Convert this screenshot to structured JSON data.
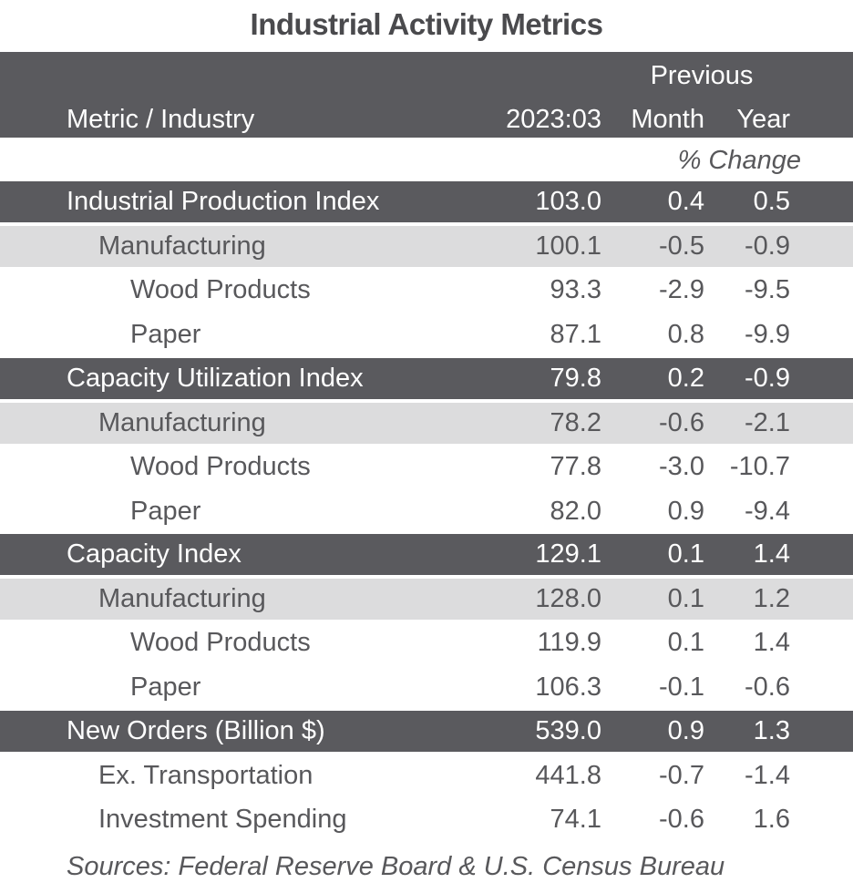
{
  "title": "Industrial Activity Metrics",
  "header": {
    "metric_label": "Metric / Industry",
    "period_label": "2023:03",
    "previous_label": "Previous",
    "month_label": "Month",
    "year_label": "Year",
    "pct_change_label": "% Change"
  },
  "colors": {
    "dark_band": "#5a5a5e",
    "light_band": "#dcdcdd",
    "text": "#58585b"
  },
  "sections": [
    {
      "rows": [
        {
          "label": "Industrial Production Index",
          "level": 0,
          "value": "103.0",
          "month": "0.4",
          "year": "0.5"
        },
        {
          "label": "Manufacturing",
          "level": 1,
          "value": "100.1",
          "month": "-0.5",
          "year": "-0.9"
        },
        {
          "label": "Wood Products",
          "level": 2,
          "value": "93.3",
          "month": "-2.9",
          "year": "-9.5"
        },
        {
          "label": "Paper",
          "level": 2,
          "value": "87.1",
          "month": "0.8",
          "year": "-9.9"
        }
      ]
    },
    {
      "rows": [
        {
          "label": "Capacity Utilization Index",
          "level": 0,
          "value": "79.8",
          "month": "0.2",
          "year": "-0.9"
        },
        {
          "label": "Manufacturing",
          "level": 1,
          "value": "78.2",
          "month": "-0.6",
          "year": "-2.1"
        },
        {
          "label": "Wood Products",
          "level": 2,
          "value": "77.8",
          "month": "-3.0",
          "year": "-10.7"
        },
        {
          "label": "Paper",
          "level": 2,
          "value": "82.0",
          "month": "0.9",
          "year": "-9.4"
        }
      ]
    },
    {
      "rows": [
        {
          "label": "Capacity Index",
          "level": 0,
          "value": "129.1",
          "month": "0.1",
          "year": "1.4"
        },
        {
          "label": "Manufacturing",
          "level": 1,
          "value": "128.0",
          "month": "0.1",
          "year": "1.2"
        },
        {
          "label": "Wood Products",
          "level": 2,
          "value": "119.9",
          "month": "0.1",
          "year": "1.4"
        },
        {
          "label": "Paper",
          "level": 2,
          "value": "106.3",
          "month": "-0.1",
          "year": "-0.6"
        }
      ]
    },
    {
      "rows": [
        {
          "label": "New Orders (Billion $)",
          "level": 0,
          "value": "539.0",
          "month": "0.9",
          "year": "1.3"
        },
        {
          "label": "Ex. Transportation",
          "level": 1,
          "value": "441.8",
          "month": "-0.7",
          "year": "-1.4",
          "plain": true
        },
        {
          "label": "Investment Spending",
          "level": 1,
          "value": "74.1",
          "month": "-0.6",
          "year": "1.6",
          "plain": true
        }
      ]
    }
  ],
  "sources": "Sources: Federal Reserve Board & U.S. Census Bureau"
}
